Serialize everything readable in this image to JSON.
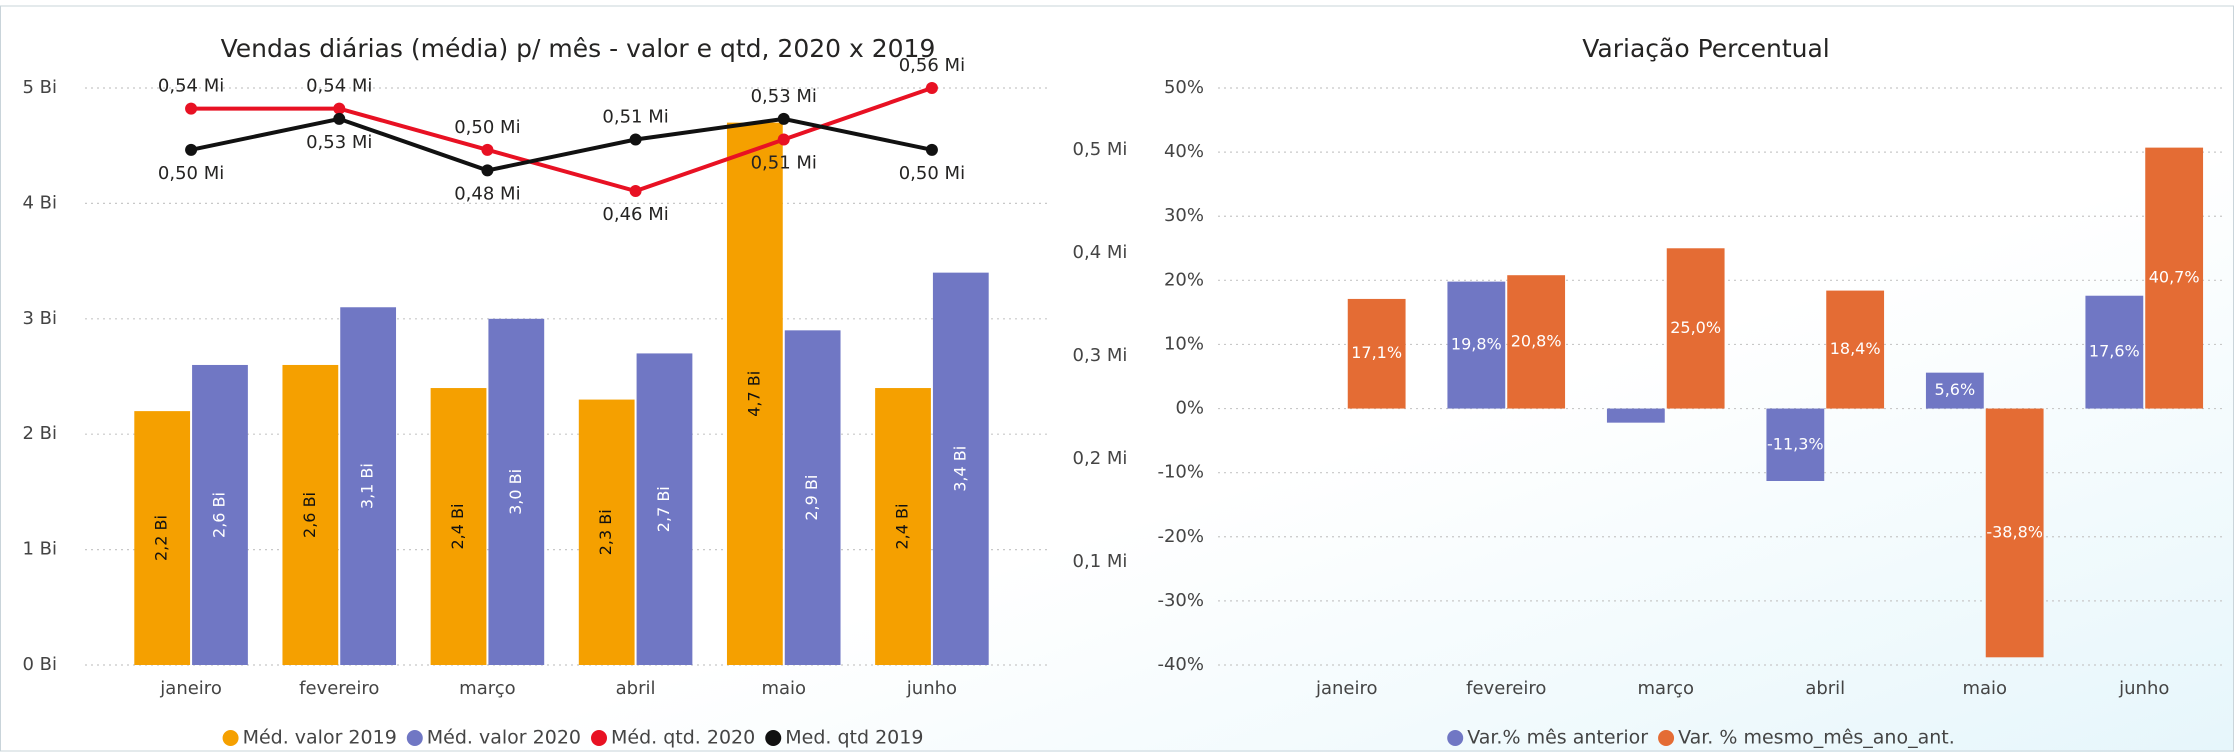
{
  "chart_data": [
    {
      "type": "bar",
      "title": "Vendas diárias (média) p/ mês - valor e qtd, 2020 x 2019",
      "categories": [
        "janeiro",
        "fevereiro",
        "março",
        "abril",
        "maio",
        "junho"
      ],
      "series": [
        {
          "name": "Méd. valor 2019",
          "color": "#F5A000",
          "values": [
            2.2,
            2.6,
            2.4,
            2.3,
            4.7,
            2.4
          ],
          "value_labels": [
            "2,2 Bi",
            "2,6 Bi",
            "2,4 Bi",
            "2,3 Bi",
            "4,7 Bi",
            "2,4 Bi"
          ]
        },
        {
          "name": "Méd. valor 2020",
          "color": "#7077C4",
          "values": [
            2.6,
            3.1,
            3.0,
            2.7,
            2.9,
            3.4
          ],
          "value_labels": [
            "2,6 Bi",
            "3,1 Bi",
            "3,0 Bi",
            "2,7 Bi",
            "2,9 Bi",
            "3,4 Bi"
          ]
        },
        {
          "name": "Méd. qtd. 2020",
          "color": "#E81123",
          "type": "line",
          "axis": "y2",
          "values": [
            0.54,
            0.54,
            0.5,
            0.46,
            0.51,
            0.56
          ],
          "value_labels": [
            "0,54 Mi",
            "0,54 Mi",
            "0,50 Mi",
            "0,46 Mi",
            "0,51 Mi",
            "0,56 Mi"
          ]
        },
        {
          "name": "Med. qtd 2019",
          "color": "#111111",
          "type": "line",
          "axis": "y2",
          "values": [
            0.5,
            0.53,
            0.48,
            0.51,
            0.53,
            0.5
          ],
          "value_labels": [
            "0,50 Mi",
            "0,53 Mi",
            "0,48 Mi",
            "0,51 Mi",
            "0,53 Mi",
            "0,50 Mi"
          ]
        }
      ],
      "ylim": [
        0,
        5
      ],
      "yticks": [
        {
          "value": 0,
          "label": "0 Bi"
        },
        {
          "value": 1,
          "label": "1 Bi"
        },
        {
          "value": 2,
          "label": "2 Bi"
        },
        {
          "value": 3,
          "label": "3 Bi"
        },
        {
          "value": 4,
          "label": "4 Bi"
        },
        {
          "value": 5,
          "label": "5 Bi"
        }
      ],
      "y2lim": [
        0,
        0.56
      ],
      "y2ticks": [
        {
          "value": 0.1,
          "label": "0,1 Mi"
        },
        {
          "value": 0.2,
          "label": "0,2 Mi"
        },
        {
          "value": 0.3,
          "label": "0,3 Mi"
        },
        {
          "value": 0.4,
          "label": "0,4 Mi"
        },
        {
          "value": 0.5,
          "label": "0,5 Mi"
        }
      ],
      "grid": true
    },
    {
      "type": "bar",
      "title": "Variação Percentual",
      "categories": [
        "janeiro",
        "fevereiro",
        "março",
        "abril",
        "maio",
        "junho"
      ],
      "series": [
        {
          "name": "Var.% mês anterior",
          "color": "#7077C4",
          "values": [
            null,
            19.8,
            -2.2,
            -11.3,
            5.6,
            17.6
          ],
          "value_labels": [
            null,
            "19,8%",
            null,
            "-11,3%",
            "5,6%",
            "17,6%"
          ]
        },
        {
          "name": "Var. % mesmo_mês_ano_ant.",
          "color": "#E46C34",
          "values": [
            17.1,
            20.8,
            25.0,
            18.4,
            -38.8,
            40.7
          ],
          "value_labels": [
            "17,1%",
            "20,8%",
            "25,0%",
            "18,4%",
            "-38,8%",
            "40,7%"
          ]
        }
      ],
      "ylim": [
        -40,
        50
      ],
      "yticks": [
        {
          "value": -40,
          "label": "-40%"
        },
        {
          "value": -30,
          "label": "-30%"
        },
        {
          "value": -20,
          "label": "-20%"
        },
        {
          "value": -10,
          "label": "-10%"
        },
        {
          "value": 0,
          "label": "0%"
        },
        {
          "value": 10,
          "label": "10%"
        },
        {
          "value": 20,
          "label": "20%"
        },
        {
          "value": 30,
          "label": "30%"
        },
        {
          "value": 40,
          "label": "40%"
        },
        {
          "value": 50,
          "label": "50%"
        }
      ],
      "grid": true
    }
  ]
}
